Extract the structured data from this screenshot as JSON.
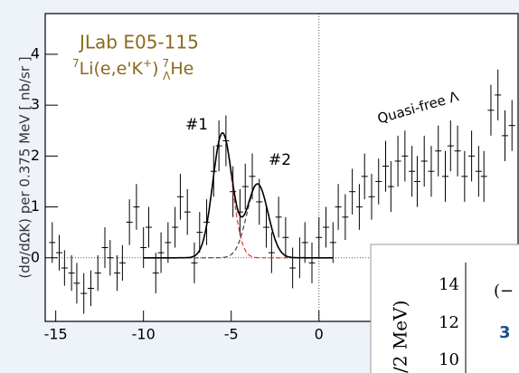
{
  "chart_data": {
    "type": "errorbar-scatter",
    "title": "JLab E05-115",
    "reaction": {
      "a1": "7",
      "base1": "Li(e,e'K",
      "charge": "+",
      "close": ")",
      "a2": "7",
      "hyp": "Λ",
      "base2": "He"
    },
    "ylabel": "(dσ/dΩK) per 0.375 MeV [ nb/sr ]",
    "annotations": [
      "#1",
      "#2",
      "Quasi-free Λ"
    ],
    "xlim": [
      -15.6,
      11.4
    ],
    "ylim": [
      -1.25,
      4.8
    ],
    "xticks": [
      -15,
      -10,
      -5,
      0
    ],
    "yticks": [
      0,
      1,
      2,
      3,
      4
    ],
    "color": "#000000",
    "series": [
      {
        "x": [
          -15.2,
          -14.8,
          -14.5,
          -14.1,
          -13.8,
          -13.4,
          -13.0,
          -12.6,
          -12.2,
          -11.9,
          -11.5,
          -11.2,
          -10.8,
          -10.4,
          -10.0,
          -9.7,
          -9.3,
          -9.0,
          -8.6,
          -8.2,
          -7.9,
          -7.5,
          -7.1,
          -6.8,
          -6.4,
          -6.0,
          -5.7,
          -5.3,
          -4.9,
          -4.5,
          -4.2,
          -3.8,
          -3.4,
          -3.0,
          -2.7,
          -2.3,
          -1.9,
          -1.5,
          -1.1,
          -0.8,
          -0.4,
          0.0,
          0.4,
          0.8,
          1.1,
          1.5,
          1.9,
          2.3,
          2.6,
          3.0,
          3.4,
          3.8,
          4.1,
          4.5,
          4.9,
          5.3,
          5.6,
          6.0,
          6.4,
          6.8,
          7.2,
          7.5,
          7.9,
          8.3,
          8.7,
          9.1,
          9.4,
          9.8,
          10.2,
          10.6,
          11.0
        ],
        "values": [
          0.3,
          0.1,
          -0.2,
          -0.3,
          -0.5,
          -0.7,
          -0.6,
          -0.3,
          0.2,
          0.0,
          -0.3,
          -0.1,
          0.7,
          1.0,
          0.2,
          0.6,
          -0.3,
          0.1,
          0.3,
          0.6,
          1.2,
          0.9,
          -0.1,
          0.5,
          0.7,
          1.7,
          2.2,
          2.3,
          1.3,
          0.9,
          1.4,
          1.6,
          1.1,
          0.6,
          0.1,
          0.8,
          0.4,
          -0.2,
          0.0,
          0.3,
          -0.1,
          0.4,
          0.6,
          0.3,
          1.0,
          0.8,
          1.3,
          1.0,
          1.6,
          1.2,
          1.5,
          1.8,
          1.4,
          1.9,
          2.0,
          1.7,
          1.5,
          1.9,
          1.7,
          2.1,
          1.6,
          2.2,
          2.1,
          1.6,
          2.0,
          1.7,
          1.6,
          2.9,
          3.2,
          2.4,
          2.6
        ],
        "errors": [
          0.4,
          0.35,
          0.35,
          0.35,
          0.4,
          0.4,
          0.35,
          0.35,
          0.4,
          0.35,
          0.35,
          0.35,
          0.45,
          0.45,
          0.4,
          0.4,
          0.4,
          0.4,
          0.4,
          0.4,
          0.45,
          0.45,
          0.4,
          0.4,
          0.45,
          0.5,
          0.5,
          0.5,
          0.5,
          0.45,
          0.45,
          0.45,
          0.45,
          0.4,
          0.4,
          0.4,
          0.4,
          0.4,
          0.4,
          0.4,
          0.4,
          0.4,
          0.4,
          0.4,
          0.45,
          0.45,
          0.45,
          0.45,
          0.45,
          0.45,
          0.45,
          0.5,
          0.5,
          0.5,
          0.5,
          0.5,
          0.5,
          0.5,
          0.5,
          0.5,
          0.5,
          0.5,
          0.5,
          0.5,
          0.5,
          0.5,
          0.5,
          0.5,
          0.5,
          0.5,
          0.5
        ]
      }
    ],
    "fits": [
      {
        "center": -5.5,
        "amplitude": 2.45,
        "sigma": 0.55,
        "color": "#e03020"
      },
      {
        "center": -3.5,
        "amplitude": 1.45,
        "sigma": 0.6,
        "color": "#2a4a40"
      }
    ],
    "fit_range": [
      -10,
      0.8
    ],
    "inset": {
      "tick_labels": [
        "14",
        "12",
        "10"
      ],
      "axis_label": "/2 MeV)",
      "texts": [
        "(−",
        "3"
      ]
    }
  }
}
